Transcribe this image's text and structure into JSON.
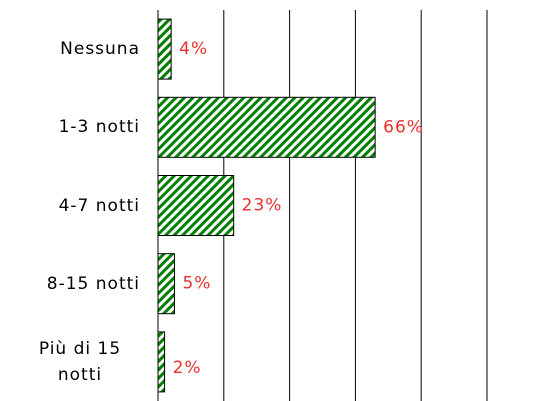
{
  "chart_data": {
    "type": "hbar",
    "categories": [
      "Nessuna",
      "1-3 notti",
      "4-7 notti",
      "8-15 notti",
      "Più di 15 notti"
    ],
    "values": [
      4,
      66,
      23,
      5,
      2
    ],
    "value_labels": [
      "4%",
      "66%",
      "23%",
      "5%",
      "2%"
    ],
    "color": "#008000",
    "xlim": [
      0,
      100
    ],
    "xticks": [
      0,
      20,
      40,
      60,
      80,
      100
    ],
    "grid": true
  }
}
